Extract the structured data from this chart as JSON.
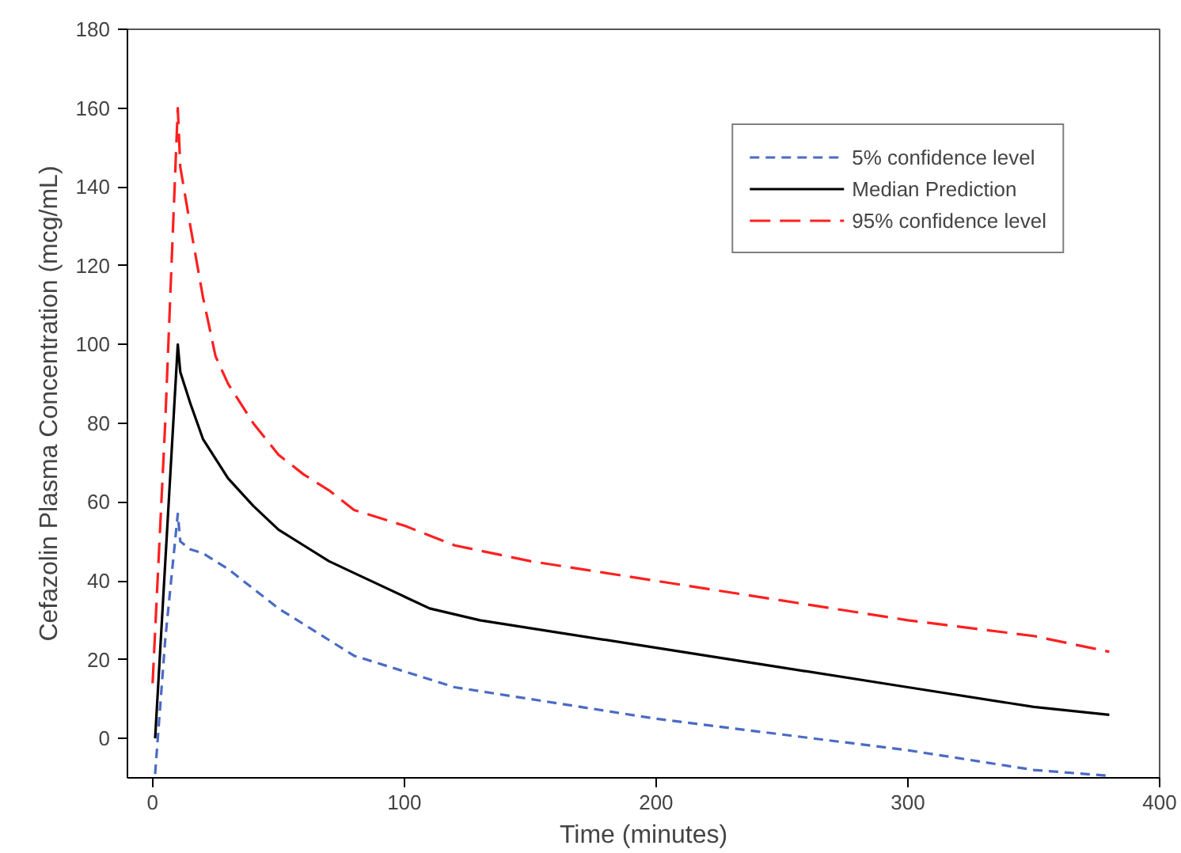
{
  "chart_data": {
    "type": "line",
    "xlabel": "Time (minutes)",
    "ylabel": "Cefazolin Plasma Concentration (mcg/mL)",
    "xlim": [
      -10,
      400
    ],
    "ylim": [
      -10,
      180
    ],
    "xticks": [
      0,
      100,
      200,
      300,
      400
    ],
    "yticks": [
      0,
      20,
      40,
      60,
      80,
      100,
      120,
      140,
      160,
      180
    ],
    "grid": false,
    "legend": "top right",
    "marker": "none",
    "series": [
      {
        "name": "5% confidence level",
        "color": "#4a6bc4",
        "line_style": "dashed",
        "x": [
          1,
          5,
          10,
          11,
          15,
          20,
          30,
          40,
          50,
          60,
          70,
          80,
          100,
          120,
          150,
          200,
          250,
          300,
          350,
          380
        ],
        "values": [
          -9,
          25,
          57,
          50,
          48,
          47,
          43,
          38,
          33,
          29,
          25,
          21,
          17,
          13,
          10,
          5,
          1,
          -3,
          -8,
          -9.5
        ]
      },
      {
        "name": "Median Prediction",
        "color": "#000000",
        "line_style": "solid",
        "x": [
          1,
          10,
          11,
          15,
          20,
          30,
          40,
          50,
          60,
          70,
          80,
          100,
          110,
          130,
          150,
          200,
          250,
          300,
          350,
          380
        ],
        "values": [
          0,
          100,
          93,
          85,
          76,
          66,
          59,
          53,
          49,
          45,
          42,
          36,
          33,
          30,
          28,
          23,
          18,
          13,
          8,
          6
        ]
      },
      {
        "name": "95% confidence level",
        "color": "#ff2020",
        "line_style": "dashed_long",
        "x": [
          0,
          5,
          10,
          11,
          15,
          20,
          25,
          30,
          40,
          50,
          60,
          70,
          80,
          100,
          120,
          150,
          200,
          250,
          300,
          350,
          380
        ],
        "values": [
          14,
          80,
          160,
          145,
          130,
          112,
          97,
          90,
          80,
          72,
          67,
          63,
          58,
          54,
          49,
          45,
          40,
          35,
          30,
          26,
          22
        ]
      }
    ]
  }
}
